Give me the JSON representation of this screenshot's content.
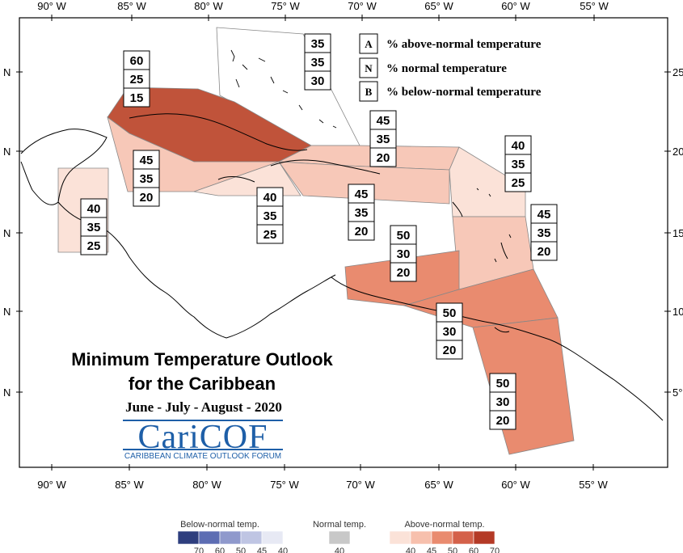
{
  "map": {
    "title_line1": "Minimum Temperature Outlook",
    "title_line2": "for the Caribbean",
    "period": "June - July - August - 2020",
    "logo": {
      "name": "CariCOF",
      "subtitle": "CARIBBEAN CLIMATE OUTLOOK FORUM"
    },
    "longitude_labels": [
      "90° W",
      "85° W",
      "80° W",
      "75° W",
      "70° W",
      "65° W",
      "60° W",
      "55° W"
    ],
    "latitude_labels": [
      "N",
      "N",
      "N",
      "N",
      "N"
    ],
    "latitude_right_labels": [
      "25",
      "20",
      "15",
      "10",
      "5°"
    ]
  },
  "legend": {
    "items": [
      {
        "key": "A",
        "text": "% above-normal temperature"
      },
      {
        "key": "N",
        "text": "% normal temperature"
      },
      {
        "key": "B",
        "text": "% below-normal temperature"
      }
    ]
  },
  "regions": [
    {
      "name": "bahamas",
      "A": "35",
      "N": "35",
      "B": "30",
      "color": "#ffffff"
    },
    {
      "name": "cuba",
      "A": "60",
      "N": "25",
      "B": "15",
      "color": "#c0533a"
    },
    {
      "name": "turks-caicos",
      "A": "45",
      "N": "35",
      "B": "20",
      "color": "#f7c8b8"
    },
    {
      "name": "cayman-islands",
      "A": "45",
      "N": "35",
      "B": "20",
      "color": "#f7c8b8"
    },
    {
      "name": "jamaica",
      "A": "40",
      "N": "35",
      "B": "25",
      "color": "#fbe2d8"
    },
    {
      "name": "hispaniola-puerto-rico",
      "A": "45",
      "N": "35",
      "B": "20",
      "color": "#f7c8b8"
    },
    {
      "name": "belize",
      "A": "40",
      "N": "35",
      "B": "25",
      "color": "#fbe2d8"
    },
    {
      "name": "leeward-islands",
      "A": "40",
      "N": "35",
      "B": "25",
      "color": "#fbe2d8"
    },
    {
      "name": "windward-islands",
      "A": "45",
      "N": "35",
      "B": "20",
      "color": "#f7c8b8"
    },
    {
      "name": "abc-islands",
      "A": "50",
      "N": "30",
      "B": "20",
      "color": "#e98b6f"
    },
    {
      "name": "trinidad-tobago",
      "A": "50",
      "N": "30",
      "B": "20",
      "color": "#e98b6f"
    },
    {
      "name": "guianas",
      "A": "50",
      "N": "30",
      "B": "20",
      "color": "#e98b6f"
    }
  ],
  "color_scale": {
    "below": {
      "label": "Below-normal temp.",
      "values": [
        "70",
        "60",
        "50",
        "45",
        "40"
      ],
      "colors": [
        "#2e3e7e",
        "#5d6db3",
        "#8f99cc",
        "#bfc5e3",
        "#e7e9f4"
      ]
    },
    "normal": {
      "label": "Normal temp.",
      "values": [
        "40"
      ],
      "colors": [
        "#c8c8c8"
      ]
    },
    "above": {
      "label": "Above-normal temp.",
      "values": [
        "40",
        "45",
        "50",
        "60",
        "70"
      ],
      "colors": [
        "#fbe2d8",
        "#f7c0ad",
        "#e98b6f",
        "#d4614a",
        "#b43a26"
      ]
    }
  }
}
